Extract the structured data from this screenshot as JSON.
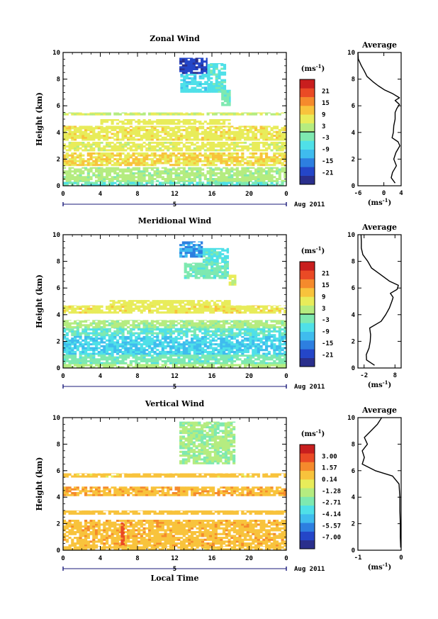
{
  "chart_data": [
    {
      "type": "heatmap",
      "title": "Zonal Wind",
      "ylabel": "Height (km)",
      "ylim": [
        0,
        10
      ],
      "xlim": [
        0,
        24
      ],
      "x_ticks": [
        "0",
        "4",
        "8",
        "12",
        "16",
        "20",
        "0"
      ],
      "y_ticks": [
        "0",
        "2",
        "4",
        "6",
        "8",
        "10"
      ],
      "date_label": "5",
      "period_label": "Aug 2011",
      "colorbar": {
        "unit": "(ms",
        "unit_exp": "-1",
        "unit_close": ")",
        "tick_labels": [
          "21",
          "15",
          "9",
          "3",
          "-3",
          "-9",
          "-15",
          "-21"
        ],
        "range": [
          -24,
          24
        ],
        "zero_line": 0
      },
      "regions": [
        {
          "t": [
            12.5,
            15.5
          ],
          "h": [
            8.4,
            9.6
          ],
          "v": -19
        },
        {
          "t": [
            15.5,
            17.5
          ],
          "h": [
            7.0,
            9.2
          ],
          "v": -5
        },
        {
          "t": [
            12.6,
            15.6
          ],
          "h": [
            7.0,
            8.4
          ],
          "v": -7
        },
        {
          "t": [
            17.0,
            18.0
          ],
          "h": [
            6.0,
            7.2
          ],
          "v": -3
        },
        {
          "t": [
            0.0,
            24.0
          ],
          "h": [
            5.3,
            5.5
          ],
          "v": 4
        },
        {
          "t": [
            4.0,
            18.0
          ],
          "h": [
            4.6,
            5.0
          ],
          "v": 6
        },
        {
          "t": [
            0.0,
            24.0
          ],
          "h": [
            3.4,
            4.5
          ],
          "v": 7
        },
        {
          "t": [
            0.0,
            24.0
          ],
          "h": [
            2.6,
            3.3
          ],
          "v": 5
        },
        {
          "t": [
            0.0,
            24.0
          ],
          "h": [
            1.5,
            2.5
          ],
          "v": 8
        },
        {
          "t": [
            0.0,
            24.0
          ],
          "h": [
            0.3,
            1.4
          ],
          "v": 1
        },
        {
          "t": [
            0.0,
            24.0
          ],
          "h": [
            0.0,
            0.3
          ],
          "v": -4
        }
      ],
      "profile": {
        "title": "Average",
        "xlim": [
          -6,
          4
        ],
        "x_ticks": [
          "-6",
          "0",
          "4"
        ],
        "xlabel": "(ms",
        "xlabel_exp": "-1",
        "xlabel_close": ")",
        "heights": [
          0.2,
          0.6,
          1.0,
          1.5,
          2.0,
          2.5,
          3.0,
          3.3,
          3.6,
          4.0,
          4.5,
          5.0,
          5.5,
          5.8,
          6.1,
          6.4,
          6.6,
          6.9,
          7.2,
          7.5,
          7.8,
          8.2,
          8.6,
          9.0,
          9.5,
          10.0
        ],
        "values": [
          2.6,
          1.7,
          2.0,
          2.9,
          2.3,
          2.8,
          3.7,
          3.3,
          1.9,
          2.2,
          2.3,
          2.6,
          2.6,
          3.0,
          3.6,
          2.6,
          3.6,
          2.1,
          0.1,
          -1.3,
          -2.5,
          -3.9,
          -4.5,
          -5.2,
          -5.9,
          -6.0
        ]
      }
    },
    {
      "type": "heatmap",
      "title": "Meridional Wind",
      "ylabel": "Height (km)",
      "ylim": [
        0,
        10
      ],
      "xlim": [
        0,
        24
      ],
      "x_ticks": [
        "0",
        "4",
        "8",
        "12",
        "16",
        "20",
        "0"
      ],
      "y_ticks": [
        "0",
        "2",
        "4",
        "6",
        "8",
        "10"
      ],
      "date_label": "5",
      "period_label": "Aug 2011",
      "colorbar": {
        "unit": "(ms",
        "unit_exp": "-1",
        "unit_close": ")",
        "tick_labels": [
          "21",
          "15",
          "9",
          "3",
          "-3",
          "-9",
          "-15",
          "-21"
        ],
        "range": [
          -24,
          24
        ],
        "zero_line": 0
      },
      "regions": [
        {
          "t": [
            12.5,
            15.0
          ],
          "h": [
            8.3,
            9.5
          ],
          "v": -12
        },
        {
          "t": [
            15.0,
            17.8
          ],
          "h": [
            7.9,
            9.0
          ],
          "v": -5
        },
        {
          "t": [
            13.0,
            17.8
          ],
          "h": [
            6.7,
            7.9
          ],
          "v": -3
        },
        {
          "t": [
            17.8,
            18.6
          ],
          "h": [
            6.2,
            7.0
          ],
          "v": 4
        },
        {
          "t": [
            0.0,
            24.0
          ],
          "h": [
            4.1,
            4.7
          ],
          "v": 7
        },
        {
          "t": [
            5.0,
            18.0
          ],
          "h": [
            4.7,
            5.1
          ],
          "v": 6
        },
        {
          "t": [
            0.0,
            24.0
          ],
          "h": [
            3.0,
            3.6
          ],
          "v": 1
        },
        {
          "t": [
            0.0,
            24.0
          ],
          "h": [
            2.4,
            3.0
          ],
          "v": -4
        },
        {
          "t": [
            0.0,
            24.0
          ],
          "h": [
            1.0,
            2.4
          ],
          "v": -8
        },
        {
          "t": [
            0.0,
            24.0
          ],
          "h": [
            0.3,
            1.0
          ],
          "v": -3
        },
        {
          "t": [
            0.0,
            24.0
          ],
          "h": [
            0.0,
            0.3
          ],
          "v": 2
        }
      ],
      "profile": {
        "title": "Average",
        "xlim": [
          -4,
          10
        ],
        "x_ticks": [
          "-2",
          "8"
        ],
        "tick_values": [
          -2,
          8
        ],
        "xlabel": "(ms",
        "xlabel_exp": "-1",
        "xlabel_close": ")",
        "heights": [
          0.2,
          0.6,
          1.0,
          1.5,
          2.0,
          2.5,
          3.0,
          3.5,
          4.0,
          4.5,
          5.0,
          5.3,
          5.6,
          5.9,
          6.2,
          6.5,
          7.0,
          7.5,
          8.0,
          8.5,
          9.0,
          9.5,
          10.0
        ],
        "values": [
          1.4,
          -1.2,
          -1.3,
          -0.4,
          0.0,
          0.1,
          -0.2,
          3.5,
          5.0,
          6.2,
          7.0,
          7.4,
          6.5,
          8.7,
          9.1,
          6.3,
          3.4,
          0.4,
          -0.8,
          -2.4,
          -2.9,
          -2.9,
          -3.0
        ]
      }
    },
    {
      "type": "heatmap",
      "title": "Vertical Wind",
      "ylabel": "Height (km)",
      "xlabel": "Local Time",
      "ylim": [
        0,
        10
      ],
      "xlim": [
        0,
        24
      ],
      "x_ticks": [
        "0",
        "4",
        "8",
        "12",
        "16",
        "20",
        "0"
      ],
      "y_ticks": [
        "0",
        "2",
        "4",
        "6",
        "8",
        "10"
      ],
      "date_label": "5",
      "period_label": "Aug 2011",
      "colorbar": {
        "unit": "(ms",
        "unit_exp": "-1",
        "unit_close": ")",
        "tick_labels": [
          "3.00",
          "1.57",
          "0.14",
          "-1.28",
          "-2.71",
          "-4.14",
          "-5.57",
          "-7.00"
        ],
        "range": [
          -7.7,
          3.7
        ]
      },
      "regions": [
        {
          "t": [
            12.5,
            18.5
          ],
          "h": [
            6.5,
            9.7
          ],
          "v": -1.9
        },
        {
          "t": [
            0.0,
            24.0
          ],
          "h": [
            5.5,
            5.8
          ],
          "v": 0.2
        },
        {
          "t": [
            0.0,
            24.0
          ],
          "h": [
            4.1,
            4.8
          ],
          "v": 0.7
        },
        {
          "t": [
            0.0,
            24.0
          ],
          "h": [
            2.7,
            3.0
          ],
          "v": 0.4
        },
        {
          "t": [
            0.0,
            24.0
          ],
          "h": [
            0.3,
            2.3
          ],
          "v": 0.6
        },
        {
          "t": [
            6.2,
            6.6
          ],
          "h": [
            0.4,
            2.1
          ],
          "v": 2.3
        },
        {
          "t": [
            0.0,
            24.0
          ],
          "h": [
            0.0,
            0.3
          ],
          "v": 0.2
        }
      ],
      "profile": {
        "title": "Average",
        "xlim": [
          -1,
          0
        ],
        "x_ticks": [
          "-1",
          "0"
        ],
        "xlabel": "(ms",
        "xlabel_exp": "-1",
        "xlabel_close": ")",
        "heights": [
          0.2,
          1.0,
          2.0,
          3.0,
          4.0,
          5.0,
          5.6,
          6.0,
          6.5,
          7.0,
          7.5,
          8.0,
          8.5,
          9.0,
          9.5,
          10.0
        ],
        "values": [
          -0.01,
          -0.02,
          -0.02,
          -0.03,
          -0.03,
          -0.05,
          -0.2,
          -0.6,
          -0.9,
          -0.85,
          -0.9,
          -0.78,
          -0.85,
          -0.7,
          -0.55,
          -0.45
        ]
      }
    }
  ],
  "colors": {
    "palette": [
      "#2a2f8c",
      "#2446c8",
      "#2d7fe0",
      "#3fbcee",
      "#4fe0e8",
      "#7ee9b0",
      "#b5ec80",
      "#e8ec5a",
      "#f8c33c",
      "#f58a2c",
      "#ea4a25",
      "#c81e1e"
    ],
    "contour": "#000000",
    "axis": "#000000",
    "date_marker": "#1a1a7a"
  }
}
